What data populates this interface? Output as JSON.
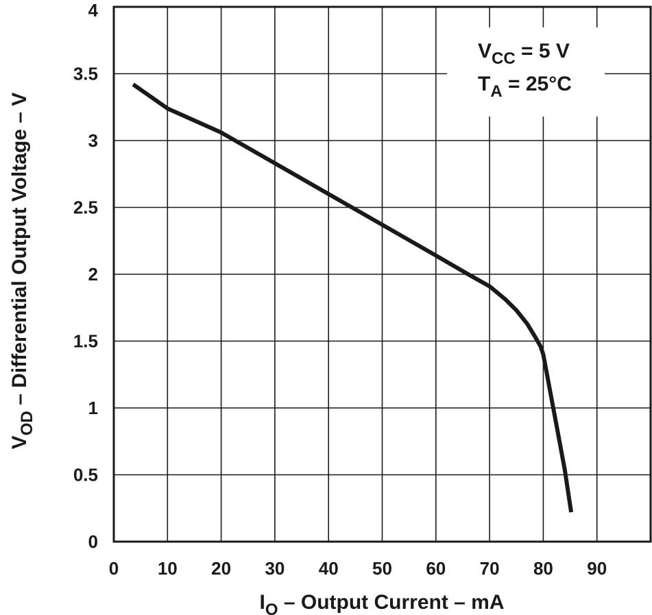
{
  "chart_data": {
    "type": "line",
    "title": "",
    "xlabel": "I_O – Output Current – mA",
    "xlabel_parts": {
      "main": "I",
      "sub": "O",
      "rest": " – Output Current – mA"
    },
    "ylabel": "V_OD – Differential Output Voltage – V",
    "ylabel_parts": {
      "main": "V",
      "sub": "OD",
      "rest": " – Differential Output Voltage – V"
    },
    "xlim": [
      0,
      100
    ],
    "ylim": [
      0,
      4
    ],
    "xticks": [
      0,
      10,
      20,
      30,
      40,
      50,
      60,
      70,
      80,
      90
    ],
    "xtick_labels": [
      "0",
      "10",
      "20",
      "30",
      "40",
      "50",
      "60",
      "70",
      "80",
      "90"
    ],
    "yticks": [
      0,
      0.5,
      1,
      1.5,
      2,
      2.5,
      3,
      3.5,
      4
    ],
    "ytick_labels": [
      "0",
      "0.5",
      "1",
      "1.5",
      "2",
      "2.5",
      "3",
      "3.5",
      "4"
    ],
    "grid": true,
    "legend": {
      "position": "top-right",
      "lines": [
        {
          "main": "V",
          "sub": "CC",
          "rest": " = 5 V"
        },
        {
          "main": "T",
          "sub": "A",
          "rest": " = 25°C"
        }
      ]
    },
    "series": [
      {
        "name": "V_OD",
        "x": [
          3.6,
          10,
          20,
          30,
          40,
          50,
          60,
          66,
          70,
          73,
          75,
          77,
          78.5,
          79.5,
          80,
          82,
          84,
          85.2
        ],
        "y": [
          3.42,
          3.24,
          3.06,
          2.83,
          2.6,
          2.37,
          2.14,
          2.0,
          1.91,
          1.81,
          1.73,
          1.63,
          1.53,
          1.46,
          1.4,
          0.97,
          0.54,
          0.22
        ]
      }
    ]
  }
}
